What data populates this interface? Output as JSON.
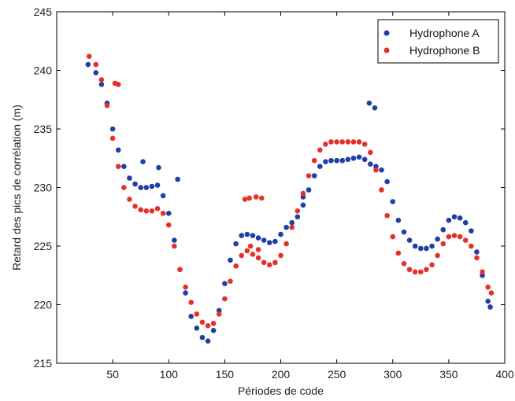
{
  "chart_data": {
    "type": "scatter",
    "xlabel": "Périodes de code",
    "ylabel": "Retard des pics de corrélation (m)",
    "xlim": [
      0,
      400
    ],
    "ylim": [
      215,
      245
    ],
    "xticks": [
      50,
      100,
      150,
      200,
      250,
      300,
      350,
      400
    ],
    "yticks": [
      215,
      220,
      225,
      230,
      235,
      240,
      245
    ],
    "xtick_labels": [
      "50",
      "100",
      "150",
      "200",
      "250",
      "300",
      "350",
      "400"
    ],
    "ytick_labels": [
      "215",
      "220",
      "225",
      "230",
      "235",
      "240",
      "245"
    ],
    "grid": false,
    "legend": {
      "position": "top-right"
    },
    "series": [
      {
        "name": "Hydrophone A",
        "color": "#1f3fa8",
        "x": [
          28,
          35,
          40,
          45,
          50,
          55,
          60,
          65,
          70,
          75,
          80,
          85,
          90,
          95,
          100,
          105,
          110,
          115,
          120,
          125,
          130,
          135,
          140,
          145,
          150,
          155,
          160,
          165,
          170,
          175,
          180,
          185,
          190,
          195,
          200,
          205,
          210,
          215,
          220,
          225,
          230,
          235,
          240,
          245,
          250,
          255,
          260,
          265,
          270,
          275,
          280,
          285,
          290,
          295,
          300,
          305,
          310,
          315,
          320,
          325,
          330,
          335,
          340,
          345,
          350,
          355,
          360,
          365,
          370,
          375,
          380,
          385,
          387,
          77,
          91,
          108,
          220,
          279,
          284
        ],
        "y": [
          240.5,
          239.8,
          238.8,
          237.2,
          235.0,
          233.2,
          231.8,
          230.8,
          230.3,
          230.0,
          230.0,
          230.1,
          230.2,
          229.3,
          227.8,
          225.5,
          223.0,
          221.0,
          219.0,
          218.0,
          217.2,
          216.9,
          217.8,
          219.5,
          221.8,
          223.8,
          225.2,
          225.9,
          226.0,
          225.9,
          225.7,
          225.5,
          225.3,
          225.4,
          226.0,
          226.6,
          227.0,
          227.5,
          228.5,
          229.8,
          231.0,
          231.8,
          232.2,
          232.3,
          232.3,
          232.3,
          232.4,
          232.5,
          232.6,
          232.4,
          232.0,
          231.8,
          231.5,
          230.5,
          228.8,
          227.2,
          226.2,
          225.5,
          225.0,
          224.8,
          224.8,
          225.0,
          225.6,
          226.4,
          227.2,
          227.5,
          227.4,
          227.0,
          226.3,
          224.5,
          222.5,
          220.3,
          219.8,
          232.2,
          231.7,
          230.7,
          229.2,
          237.2,
          236.8
        ]
      },
      {
        "name": "Hydrophone B",
        "color": "#e8302a",
        "x": [
          29,
          35,
          40,
          45,
          50,
          55,
          60,
          65,
          70,
          75,
          80,
          85,
          90,
          95,
          100,
          105,
          110,
          115,
          120,
          125,
          130,
          135,
          140,
          145,
          150,
          155,
          160,
          165,
          170,
          175,
          180,
          185,
          190,
          195,
          200,
          205,
          210,
          215,
          220,
          225,
          230,
          235,
          240,
          245,
          250,
          255,
          260,
          265,
          270,
          275,
          280,
          285,
          290,
          295,
          300,
          305,
          310,
          315,
          320,
          325,
          330,
          335,
          340,
          345,
          350,
          355,
          360,
          365,
          370,
          375,
          380,
          385,
          388,
          52,
          55,
          168,
          172,
          178,
          183,
          173,
          180
        ],
        "y": [
          241.2,
          240.5,
          239.2,
          237.0,
          234.2,
          231.8,
          230.0,
          229.0,
          228.4,
          228.1,
          228.0,
          228.0,
          228.2,
          227.8,
          226.8,
          225.0,
          223.0,
          221.5,
          220.2,
          219.2,
          218.5,
          218.2,
          218.4,
          219.2,
          220.5,
          222.0,
          223.3,
          224.2,
          224.6,
          224.3,
          224.0,
          223.6,
          223.4,
          223.6,
          224.2,
          225.2,
          226.6,
          228.0,
          229.5,
          231.0,
          232.3,
          233.2,
          233.7,
          233.9,
          233.9,
          233.9,
          233.9,
          233.9,
          233.9,
          233.7,
          233.0,
          231.5,
          229.8,
          227.6,
          225.8,
          224.4,
          223.5,
          223.0,
          222.8,
          222.8,
          223.0,
          223.4,
          224.2,
          225.2,
          225.8,
          225.9,
          225.8,
          225.5,
          225.0,
          224.0,
          222.8,
          221.5,
          221.0,
          238.9,
          238.8,
          229.0,
          229.1,
          229.2,
          229.1,
          225.0,
          224.7
        ]
      }
    ]
  }
}
